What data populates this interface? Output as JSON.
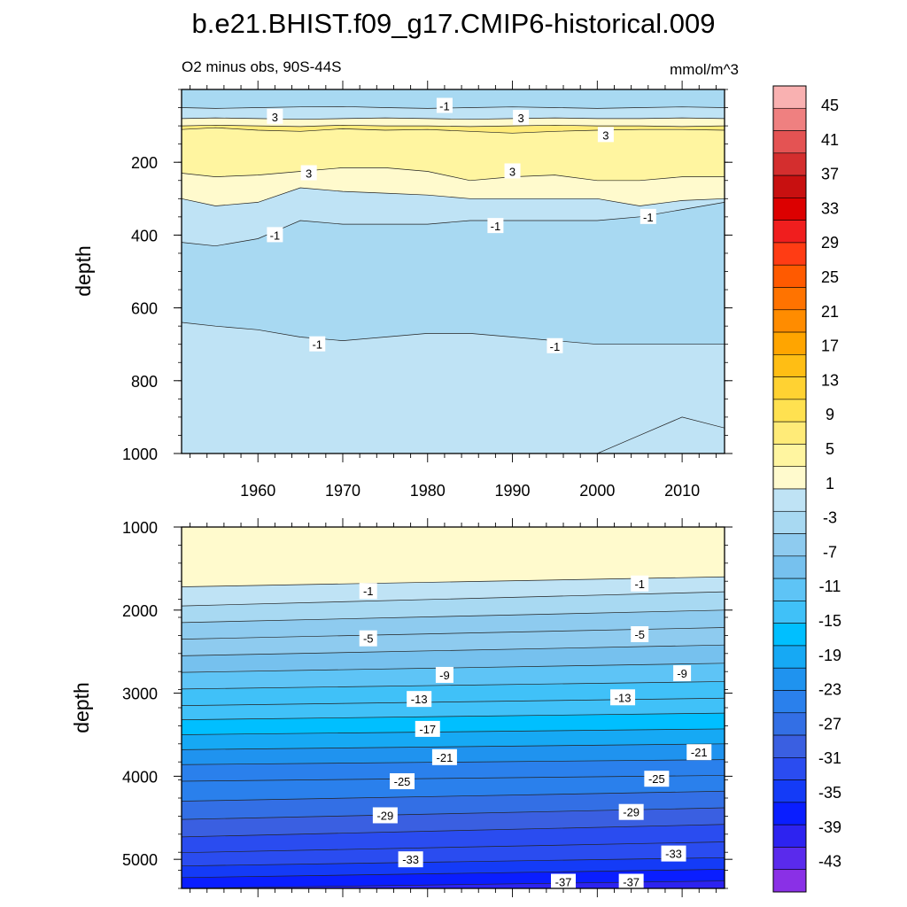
{
  "chart_data": {
    "type": "contour",
    "title": "b.e21.BHIST.f09_g17.CMIP6-historical.009",
    "subtitle_left": "O2 minus obs, 90S-44S",
    "units": "mmol/m^3",
    "panels": [
      {
        "name": "upper",
        "ylabel": "depth",
        "ylim": [
          1000,
          0
        ],
        "y_ticks": [
          200,
          400,
          600,
          800,
          1000
        ],
        "xlim": [
          1951,
          2015
        ],
        "x_ticks": [
          1960,
          1970,
          1980,
          1990,
          2000,
          2010
        ],
        "x_tick_labels": [
          "1960",
          "1970",
          "1980",
          "1990",
          "2000",
          "2010"
        ],
        "bands": [
          {
            "x": [
              1951,
              1955,
              1960,
              1965,
              1970,
              1975,
              1980,
              1985,
              1990,
              1995,
              2000,
              2005,
              2010,
              2015
            ],
            "depth": [
              50,
              52,
              50,
              48,
              47,
              50,
              52,
              50,
              48,
              50,
              52,
              50,
              48,
              50
            ],
            "level": -3
          },
          {
            "x": [
              1951,
              1955,
              1960,
              1965,
              1970,
              1975,
              1980,
              1985,
              1990,
              1995,
              2000,
              2005,
              2010,
              2015
            ],
            "depth": [
              80,
              78,
              80,
              82,
              80,
              78,
              80,
              82,
              80,
              78,
              80,
              80,
              78,
              80
            ],
            "level": 1
          },
          {
            "x": [
              1951,
              1955,
              1960,
              1965,
              1970,
              1975,
              1980,
              1985,
              1990,
              1995,
              2000,
              2005,
              2010,
              2015
            ],
            "depth": [
              100,
              98,
              100,
              102,
              98,
              100,
              100,
              102,
              100,
              98,
              100,
              100,
              102,
              100
            ],
            "level": 3
          },
          {
            "x": [
              1951,
              1955,
              1960,
              1965,
              1970,
              1975,
              1980,
              1985,
              1990,
              1995,
              2000,
              2005,
              2010,
              2015
            ],
            "depth": [
              110,
              105,
              112,
              115,
              108,
              112,
              110,
              115,
              120,
              115,
              112,
              110,
              110,
              112
            ],
            "level": 5
          },
          {
            "x": [
              1951,
              1955,
              1960,
              1965,
              1970,
              1975,
              1980,
              1985,
              1990,
              1995,
              2000,
              2005,
              2010,
              2015
            ],
            "depth": [
              230,
              240,
              235,
              225,
              215,
              215,
              225,
              250,
              240,
              235,
              250,
              250,
              240,
              240
            ],
            "level": 3
          },
          {
            "x": [
              1951,
              1955,
              1960,
              1965,
              1970,
              1975,
              1980,
              1985,
              1990,
              1995,
              2000,
              2005,
              2010,
              2015
            ],
            "depth": [
              300,
              320,
              310,
              270,
              280,
              285,
              290,
              300,
              300,
              300,
              300,
              320,
              305,
              300
            ],
            "level": 1
          },
          {
            "x": [
              1951,
              1955,
              1960,
              1965,
              1970,
              1975,
              1980,
              1985,
              1990,
              1995,
              2000,
              2005,
              2010,
              2015
            ],
            "depth": [
              420,
              430,
              410,
              360,
              370,
              370,
              370,
              360,
              360,
              360,
              360,
              350,
              330,
              310
            ],
            "level": -1
          },
          {
            "x": [
              1951,
              1955,
              1960,
              1965,
              1970,
              1975,
              1980,
              1985,
              1990,
              1995,
              2000,
              2005,
              2010,
              2015
            ],
            "depth": [
              640,
              650,
              660,
              680,
              690,
              680,
              670,
              670,
              680,
              690,
              700,
              700,
              700,
              700
            ],
            "level": -3
          },
          {
            "x": [
              1951,
              1955,
              1960,
              1965,
              1970,
              1975,
              1980,
              1985,
              1990,
              1995,
              2000,
              2005,
              2010,
              2015
            ],
            "depth": [
              1000,
              1000,
              1000,
              1000,
              1000,
              1000,
              1000,
              1000,
              1000,
              1000,
              1000,
              950,
              900,
              930
            ],
            "level": -1
          }
        ],
        "contour_labels": [
          {
            "text": "-1",
            "x": 1982,
            "depth": 45
          },
          {
            "text": "3",
            "x": 1962,
            "depth": 75
          },
          {
            "text": "3",
            "x": 1991,
            "depth": 78
          },
          {
            "text": "3",
            "x": 2001,
            "depth": 125
          },
          {
            "text": "3",
            "x": 1966,
            "depth": 230
          },
          {
            "text": "3",
            "x": 1990,
            "depth": 225
          },
          {
            "text": "-1",
            "x": 1962,
            "depth": 400
          },
          {
            "text": "-1",
            "x": 1988,
            "depth": 375
          },
          {
            "text": "-1",
            "x": 2006,
            "depth": 350
          },
          {
            "text": "-1",
            "x": 1967,
            "depth": 700
          },
          {
            "text": "-1",
            "x": 1995,
            "depth": 705
          }
        ]
      },
      {
        "name": "lower",
        "ylabel": "depth",
        "ylim": [
          5350,
          1000
        ],
        "y_ticks": [
          1000,
          2000,
          3000,
          4000,
          5000
        ],
        "xlim": [
          1951,
          2015
        ],
        "contour_levels": [
          {
            "level": 1,
            "depth_left": 1720,
            "depth_right": 1600
          },
          {
            "level": -1,
            "depth_left": 1950,
            "depth_right": 1780
          },
          {
            "level": -3,
            "depth_left": 2150,
            "depth_right": 2000
          },
          {
            "level": -5,
            "depth_left": 2350,
            "depth_right": 2210
          },
          {
            "level": -7,
            "depth_left": 2550,
            "depth_right": 2420
          },
          {
            "level": -9,
            "depth_left": 2750,
            "depth_right": 2640
          },
          {
            "level": -11,
            "depth_left": 2950,
            "depth_right": 2860
          },
          {
            "level": -13,
            "depth_left": 3150,
            "depth_right": 3060
          },
          {
            "level": -15,
            "depth_left": 3320,
            "depth_right": 3240
          },
          {
            "level": -17,
            "depth_left": 3500,
            "depth_right": 3430
          },
          {
            "level": -19,
            "depth_left": 3680,
            "depth_right": 3610
          },
          {
            "level": -21,
            "depth_left": 3860,
            "depth_right": 3800
          },
          {
            "level": -23,
            "depth_left": 4060,
            "depth_right": 3990
          },
          {
            "level": -25,
            "depth_left": 4300,
            "depth_right": 4180
          },
          {
            "level": -27,
            "depth_left": 4520,
            "depth_right": 4380
          },
          {
            "level": -29,
            "depth_left": 4730,
            "depth_right": 4580
          },
          {
            "level": -31,
            "depth_left": 4920,
            "depth_right": 4790
          },
          {
            "level": -33,
            "depth_left": 5080,
            "depth_right": 4980
          },
          {
            "level": -35,
            "depth_left": 5220,
            "depth_right": 5120
          },
          {
            "level": -37,
            "depth_left": 5350,
            "depth_right": 5260
          }
        ],
        "contour_labels": [
          {
            "text": "-1",
            "x": 1973,
            "depth": 1770
          },
          {
            "text": "-1",
            "x": 2005,
            "depth": 1680
          },
          {
            "text": "-5",
            "x": 1973,
            "depth": 2340
          },
          {
            "text": "-5",
            "x": 2005,
            "depth": 2290
          },
          {
            "text": "-9",
            "x": 1982,
            "depth": 2780
          },
          {
            "text": "-9",
            "x": 2010,
            "depth": 2760
          },
          {
            "text": "-13",
            "x": 1979,
            "depth": 3070
          },
          {
            "text": "-13",
            "x": 2003,
            "depth": 3050
          },
          {
            "text": "-17",
            "x": 1980,
            "depth": 3430
          },
          {
            "text": "-21",
            "x": 1982,
            "depth": 3770
          },
          {
            "text": "-21",
            "x": 2012,
            "depth": 3710
          },
          {
            "text": "-25",
            "x": 1977,
            "depth": 4060
          },
          {
            "text": "-25",
            "x": 2007,
            "depth": 4030
          },
          {
            "text": "-29",
            "x": 1975,
            "depth": 4470
          },
          {
            "text": "-29",
            "x": 2004,
            "depth": 4430
          },
          {
            "text": "-33",
            "x": 1978,
            "depth": 5000
          },
          {
            "text": "-33",
            "x": 2009,
            "depth": 4930
          },
          {
            "text": "-37",
            "x": 1996,
            "depth": 5270
          },
          {
            "text": "-37",
            "x": 2004,
            "depth": 5270
          }
        ]
      }
    ],
    "colorbar": {
      "levels": [
        45,
        41,
        37,
        33,
        29,
        25,
        21,
        17,
        13,
        9,
        5,
        1,
        -3,
        -7,
        -11,
        -15,
        -19,
        -23,
        -27,
        -31,
        -35,
        -39,
        -43
      ],
      "colors": [
        "#f9b1b1",
        "#ef8080",
        "#e45353",
        "#d42e2e",
        "#c81010",
        "#dc0000",
        "#f01e1e",
        "#ff3c14",
        "#ff5a00",
        "#ff7300",
        "#ff8c00",
        "#ffa500",
        "#ffbe14",
        "#ffd232",
        "#ffe150",
        "#ffeb78",
        "#fff5a0",
        "#fffacd",
        "#bfe3f5",
        "#a8d9f2",
        "#8ecbef",
        "#76c1ee",
        "#5ec4f6",
        "#40c1f8",
        "#00bfff",
        "#16a9f4",
        "#1f93ef",
        "#2a80ec",
        "#336fe5",
        "#3a5fe1",
        "#2a4cf0",
        "#143bf7",
        "#0a1eff",
        "#2d23f0",
        "#5a2aec",
        "#8a30e6"
      ]
    }
  }
}
